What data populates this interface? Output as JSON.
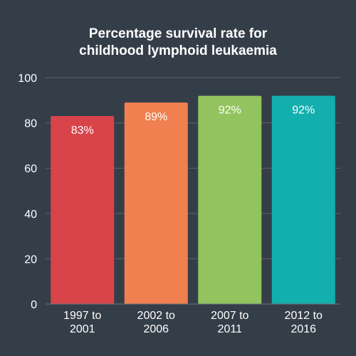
{
  "chart_data": {
    "type": "bar",
    "title_lines": [
      "Percentage survival rate for",
      "childhood lymphoid leukaemia"
    ],
    "xlabel": "",
    "ylabel": "",
    "ylim": [
      0,
      100
    ],
    "yticks": [
      0,
      20,
      40,
      60,
      80,
      100
    ],
    "grid": true,
    "legend": "none",
    "categories": [
      [
        "1997 to",
        "2001"
      ],
      [
        "2002 to",
        "2006"
      ],
      [
        "2007 to",
        "2011"
      ],
      [
        "2012 to",
        "2016"
      ]
    ],
    "values": [
      83,
      89,
      92,
      92
    ],
    "data_labels": [
      "83%",
      "89%",
      "92%",
      "92%"
    ],
    "colors": [
      "#d9434a",
      "#f0804f",
      "#92c35e",
      "#13aeae"
    ],
    "background": "#343e49",
    "grid_color": "#5b646e"
  }
}
